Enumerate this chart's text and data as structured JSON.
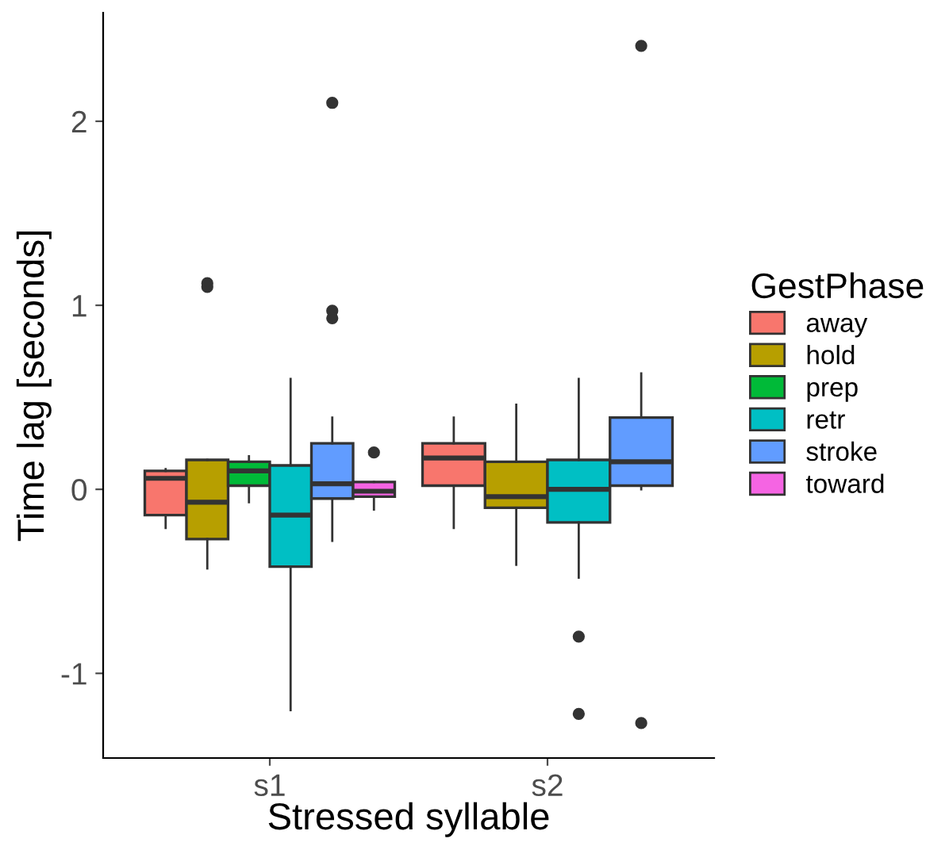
{
  "chart_data": {
    "type": "box",
    "xlabel": "Stressed syllable",
    "ylabel": "Time lag [seconds]",
    "legend_title": "GestPhase",
    "legend": "right",
    "grid": false,
    "categories": [
      "s1",
      "s2"
    ],
    "ylim": [
      -1.46,
      2.59
    ],
    "yticks": [
      {
        "value": -1,
        "label": "-1"
      },
      0,
      1,
      2
    ],
    "series": [
      {
        "name": "away",
        "color": "#f8766d",
        "boxes": [
          {
            "low": -0.21,
            "q1": -0.14,
            "median": 0.06,
            "q3": 0.1,
            "high": 0.11
          },
          {
            "low": -0.21,
            "q1": 0.02,
            "median": 0.17,
            "q3": 0.25,
            "high": 0.39
          }
        ]
      },
      {
        "name": "hold",
        "color": "#b79f00",
        "boxes": [
          {
            "low": -0.43,
            "q1": -0.27,
            "median": -0.07,
            "q3": 0.16,
            "high": 0.16,
            "outliers": [
              1.1,
              1.12
            ]
          },
          {
            "low": -0.41,
            "q1": -0.1,
            "median": -0.04,
            "q3": 0.15,
            "high": 0.46
          }
        ]
      },
      {
        "name": "prep",
        "color": "#00ba38",
        "boxes": [
          {
            "low": -0.07,
            "q1": 0.02,
            "median": 0.1,
            "q3": 0.15,
            "high": 0.18
          },
          null
        ]
      },
      {
        "name": "retr",
        "color": "#00bfc4",
        "boxes": [
          {
            "low": -1.2,
            "q1": -0.42,
            "median": -0.14,
            "q3": 0.13,
            "high": 0.6
          },
          {
            "low": -0.48,
            "q1": -0.18,
            "median": 0.0,
            "q3": 0.16,
            "high": 0.6,
            "outliers": [
              -0.8,
              -1.22
            ]
          }
        ]
      },
      {
        "name": "stroke",
        "color": "#619cff",
        "boxes": [
          {
            "low": -0.28,
            "q1": -0.05,
            "median": 0.03,
            "q3": 0.25,
            "high": 0.39,
            "outliers": [
              2.1,
              0.97,
              0.93
            ]
          },
          {
            "low": 0.0,
            "q1": 0.02,
            "median": 0.15,
            "q3": 0.39,
            "high": 0.63,
            "outliers": [
              2.41,
              -1.27
            ]
          }
        ]
      },
      {
        "name": "toward",
        "color": "#f564e3",
        "boxes": [
          {
            "low": -0.11,
            "q1": -0.04,
            "median": -0.01,
            "q3": 0.04,
            "high": 0.04,
            "outliers": [
              0.2
            ]
          },
          null
        ]
      }
    ]
  }
}
